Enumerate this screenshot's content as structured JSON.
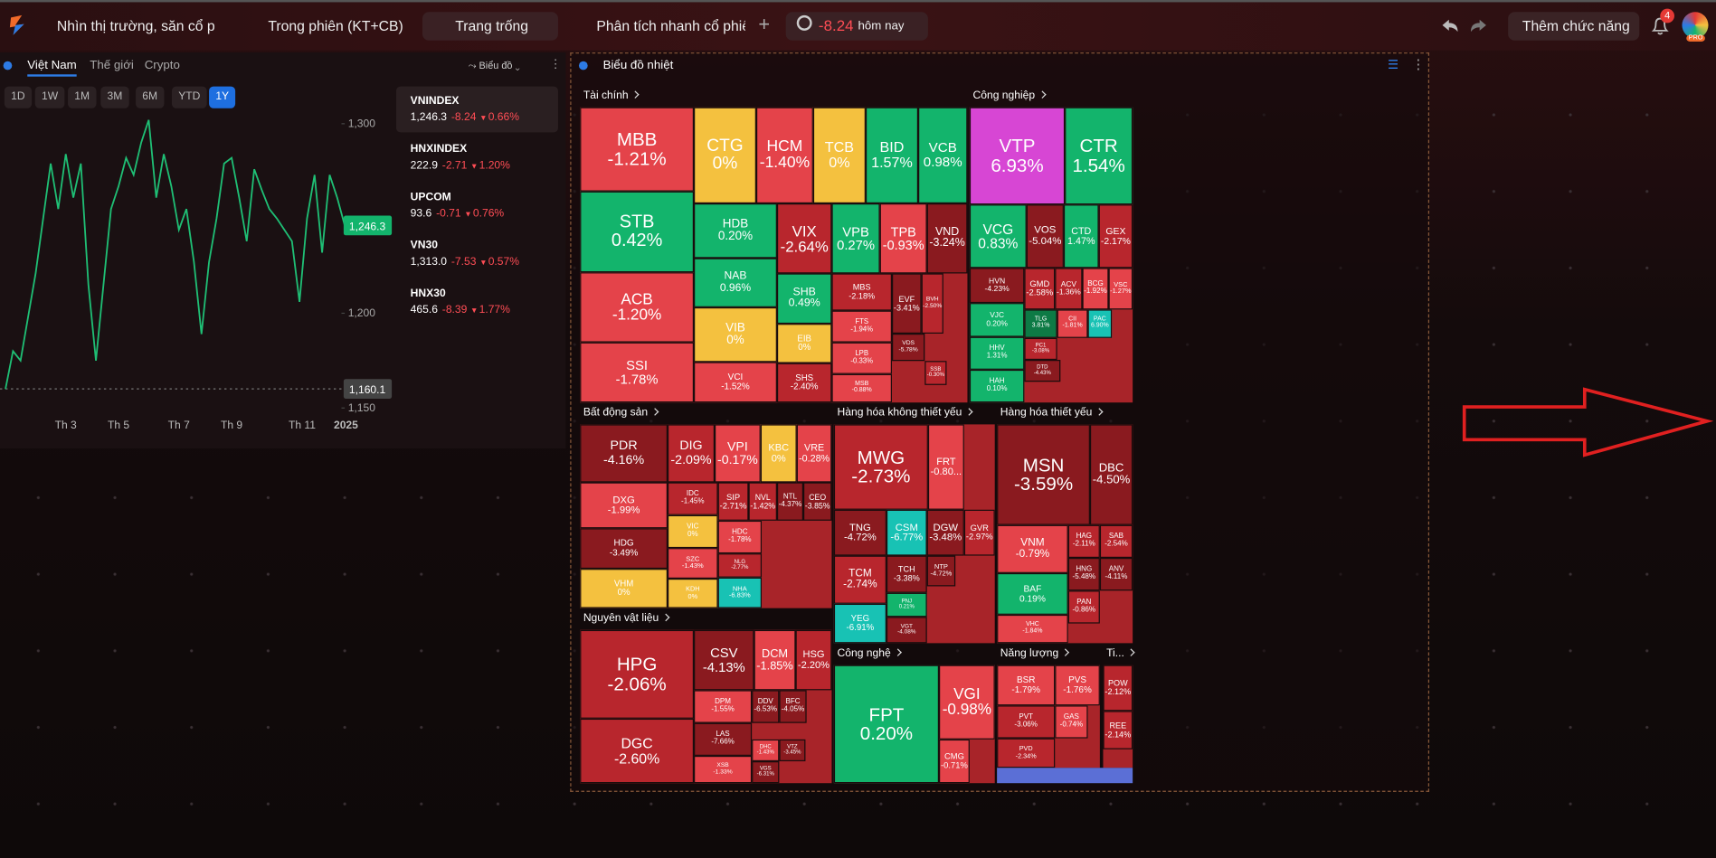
{
  "nav": {
    "tabs": [
      "Nhìn thị trường, săn cổ p",
      "Trong phiên (KT+CB)",
      "Trang trống",
      "Phân tích nhanh cổ phiếu"
    ],
    "index_change": "-8.24",
    "period": "hôm nay",
    "add_feature": "Thêm chức năng",
    "notifications": "4",
    "badge": "PRO"
  },
  "market": {
    "tabs": [
      "Việt Nam",
      "Thế giới",
      "Crypto"
    ],
    "view": "Biểu đồ",
    "ranges": [
      "1D",
      "1W",
      "1M",
      "3M",
      "6M",
      "YTD",
      "1Y"
    ],
    "indices": [
      {
        "name": "VNINDEX",
        "price": "1,246.3",
        "change": "-8.24",
        "pct": "0.66%"
      },
      {
        "name": "HNXINDEX",
        "price": "222.9",
        "change": "-2.71",
        "pct": "1.20%"
      },
      {
        "name": "UPCOM",
        "price": "93.6",
        "change": "-0.71",
        "pct": "0.76%"
      },
      {
        "name": "VN30",
        "price": "1,313.0",
        "change": "-7.53",
        "pct": "0.57%"
      },
      {
        "name": "HNX30",
        "price": "465.6",
        "change": "-8.39",
        "pct": "1.77%"
      }
    ]
  },
  "chart_data": {
    "type": "line",
    "color": "#1fbf75",
    "categories": [
      null,
      null,
      null,
      null,
      null,
      null,
      null,
      null,
      "Th 3",
      null,
      null,
      null,
      null,
      null,
      null,
      "Th 5",
      null,
      null,
      null,
      null,
      null,
      null,
      null,
      "Th 7",
      null,
      null,
      null,
      null,
      null,
      null,
      "Th 9",
      null,
      null,
      null,
      null,
      null,
      null,
      null,
      null,
      "Th 11",
      null,
      null,
      null,
      null,
      null,
      "2025"
    ],
    "values": [
      1160,
      1180,
      1175,
      1198,
      1221,
      1250,
      1279,
      1255,
      1284,
      1261,
      1279,
      1215,
      1175,
      1215,
      1255,
      1267,
      1282,
      1273,
      1290,
      1302,
      1261,
      1284,
      1267,
      1244,
      1255,
      1227,
      1189,
      1227,
      1250,
      1279,
      1282,
      1261,
      1238,
      1276,
      1265,
      1255,
      1250,
      1244,
      1238,
      1206,
      1250,
      1273,
      1232,
      1273,
      1261,
      1246.3
    ],
    "ylim": [
      1150,
      1307
    ],
    "yticks": [
      {
        "value": 1300,
        "label": "1,300"
      },
      {
        "value": 1200,
        "label": "1,200"
      },
      {
        "value": 1150,
        "label": "1,150"
      }
    ],
    "last_label": "1,246.3",
    "reference": {
      "value": 1160.1,
      "label": "1,160.1"
    }
  },
  "heatmap": {
    "title": "Biểu đồ nhiệt",
    "sectors": [
      {
        "name": "Tài chính",
        "cells": [
          {
            "ticker": "MBB",
            "change": "-1.21%",
            "color": "#e4434a"
          },
          {
            "ticker": "CTG",
            "change": "0%",
            "color": "#f4c13f"
          },
          {
            "ticker": "HCM",
            "change": "-1.40%",
            "color": "#e4434a"
          },
          {
            "ticker": "TCB",
            "change": "0%",
            "color": "#f4c13f"
          },
          {
            "ticker": "BID",
            "change": "1.57%",
            "color": "#13b46c"
          },
          {
            "ticker": "VCB",
            "change": "0.98%",
            "color": "#13b46c"
          },
          {
            "ticker": "STB",
            "change": "0.42%",
            "color": "#13b46c"
          },
          {
            "ticker": "HDB",
            "change": "0.20%",
            "color": "#13b46c"
          },
          {
            "ticker": "VIX",
            "change": "-2.64%",
            "color": "#b8262d"
          },
          {
            "ticker": "VPB",
            "change": "0.27%",
            "color": "#13b46c"
          },
          {
            "ticker": "TPB",
            "change": "-0.93%",
            "color": "#e4434a"
          },
          {
            "ticker": "VND",
            "change": "-3.24%",
            "color": "#8a1a1f"
          },
          {
            "ticker": "ACB",
            "change": "-1.20%",
            "color": "#e4434a"
          },
          {
            "ticker": "NAB",
            "change": "0.96%",
            "color": "#13b46c"
          },
          {
            "ticker": "SHB",
            "change": "0.49%",
            "color": "#13b46c"
          },
          {
            "ticker": "MBS",
            "change": "-2.18%",
            "color": "#b8262d"
          },
          {
            "ticker": "EVF",
            "change": "-3.41%",
            "color": "#8a1a1f"
          },
          {
            "ticker": "BVH",
            "change": "-2.50%",
            "color": "#b8262d"
          },
          {
            "ticker": "FTS",
            "change": "-1.94%",
            "color": "#e4434a"
          },
          {
            "ticker": "VIB",
            "change": "0%",
            "color": "#f4c13f"
          },
          {
            "ticker": "EIB",
            "change": "0%",
            "color": "#f4c13f"
          },
          {
            "ticker": "LPB",
            "change": "-0.33%",
            "color": "#e4434a"
          },
          {
            "ticker": "VDS",
            "change": "-5.78%",
            "color": "#8a1a1f"
          },
          {
            "ticker": "SSI",
            "change": "-1.78%",
            "color": "#e4434a"
          },
          {
            "ticker": "VCI",
            "change": "-1.52%",
            "color": "#e4434a"
          },
          {
            "ticker": "SHS",
            "change": "-2.40%",
            "color": "#b8262d"
          },
          {
            "ticker": "MSB",
            "change": "-0.88%",
            "color": "#e4434a"
          },
          {
            "ticker": "SSB",
            "change": "-0.30%",
            "color": "#b8262d"
          }
        ]
      },
      {
        "name": "Công nghiệp",
        "cells": [
          {
            "ticker": "VTP",
            "change": "6.93%",
            "color": "#d746d4"
          },
          {
            "ticker": "CTR",
            "change": "1.54%",
            "color": "#13b46c"
          },
          {
            "ticker": "VCG",
            "change": "0.83%",
            "color": "#13b46c"
          },
          {
            "ticker": "VOS",
            "change": "-5.04%",
            "color": "#8a1a1f"
          },
          {
            "ticker": "CTD",
            "change": "1.47%",
            "color": "#13b46c"
          },
          {
            "ticker": "GEX",
            "change": "-2.17%",
            "color": "#b8262d"
          },
          {
            "ticker": "HVN",
            "change": "-4.23%",
            "color": "#8a1a1f"
          },
          {
            "ticker": "GMD",
            "change": "-2.58%",
            "color": "#b8262d"
          },
          {
            "ticker": "ACV",
            "change": "-1.36%",
            "color": "#b8262d"
          },
          {
            "ticker": "BCG",
            "change": "-1.92%",
            "color": "#e4434a"
          },
          {
            "ticker": "VSC",
            "change": "-1.27%",
            "color": "#e4434a"
          },
          {
            "ticker": "VJC",
            "change": "0.20%",
            "color": "#13b46c"
          },
          {
            "ticker": "TLG",
            "change": "3.81%",
            "color": "#0d7a45"
          },
          {
            "ticker": "CII",
            "change": "-1.81%",
            "color": "#e4434a"
          },
          {
            "ticker": "PAC",
            "change": "6.90%",
            "color": "#18c2b4"
          },
          {
            "ticker": "HHV",
            "change": "1.31%",
            "color": "#13b46c"
          },
          {
            "ticker": "PC1",
            "change": "-3.08%",
            "color": "#b8262d"
          },
          {
            "ticker": "DTD",
            "change": "-4.43%",
            "color": "#8a1a1f"
          },
          {
            "ticker": "HAH",
            "change": "0.10%",
            "color": "#13b46c"
          }
        ]
      },
      {
        "name": "Bất động sản",
        "cells": [
          {
            "ticker": "PDR",
            "change": "-4.16%",
            "color": "#8a1a1f"
          },
          {
            "ticker": "DIG",
            "change": "-2.09%",
            "color": "#b8262d"
          },
          {
            "ticker": "VPI",
            "change": "-0.17%",
            "color": "#e4434a"
          },
          {
            "ticker": "KBC",
            "change": "0%",
            "color": "#f4c13f"
          },
          {
            "ticker": "VRE",
            "change": "-0.28%",
            "color": "#e4434a"
          },
          {
            "ticker": "DXG",
            "change": "-1.99%",
            "color": "#e4434a"
          },
          {
            "ticker": "IDC",
            "change": "-1.45%",
            "color": "#b8262d"
          },
          {
            "ticker": "SIP",
            "change": "-2.71%",
            "color": "#b8262d"
          },
          {
            "ticker": "NVL",
            "change": "-1.42%",
            "color": "#b8262d"
          },
          {
            "ticker": "NTL",
            "change": "-4.37%",
            "color": "#8a1a1f"
          },
          {
            "ticker": "CEO",
            "change": "-3.85%",
            "color": "#8a1a1f"
          },
          {
            "ticker": "HDG",
            "change": "-3.49%",
            "color": "#8a1a1f"
          },
          {
            "ticker": "VIC",
            "change": "0%",
            "color": "#f4c13f"
          },
          {
            "ticker": "HDC",
            "change": "-1.78%",
            "color": "#e4434a"
          },
          {
            "ticker": "SZC",
            "change": "-1.43%",
            "color": "#e4434a"
          },
          {
            "ticker": "NLG",
            "change": "-2.77%",
            "color": "#b8262d"
          },
          {
            "ticker": "VHM",
            "change": "0%",
            "color": "#f4c13f"
          },
          {
            "ticker": "KDH",
            "change": "0%",
            "color": "#f4c13f"
          },
          {
            "ticker": "NHA",
            "change": "-6.83%",
            "color": "#18c2b4"
          }
        ]
      },
      {
        "name": "Hàng hóa không thiết yếu",
        "cells": [
          {
            "ticker": "MWG",
            "change": "-2.73%",
            "color": "#b8262d"
          },
          {
            "ticker": "FRT",
            "change": "-0.80...",
            "color": "#e4434a"
          },
          {
            "ticker": "TNG",
            "change": "-4.72%",
            "color": "#8a1a1f"
          },
          {
            "ticker": "CSM",
            "change": "-6.77%",
            "color": "#18c2b4"
          },
          {
            "ticker": "DGW",
            "change": "-3.48%",
            "color": "#8a1a1f"
          },
          {
            "ticker": "GVR",
            "change": "-2.97%",
            "color": "#b8262d"
          },
          {
            "ticker": "TCM",
            "change": "-2.74%",
            "color": "#b8262d"
          },
          {
            "ticker": "TCH",
            "change": "-3.38%",
            "color": "#8a1a1f"
          },
          {
            "ticker": "NTP",
            "change": "-4.72%",
            "color": "#8a1a1f"
          },
          {
            "ticker": "PNJ",
            "change": "0.21%",
            "color": "#13b46c"
          },
          {
            "ticker": "YEG",
            "change": "-6.91%",
            "color": "#18c2b4"
          },
          {
            "ticker": "VGT",
            "change": "-4.08%",
            "color": "#8a1a1f"
          }
        ]
      },
      {
        "name": "Hàng hóa thiết yếu",
        "cells": [
          {
            "ticker": "MSN",
            "change": "-3.59%",
            "color": "#8a1a1f"
          },
          {
            "ticker": "DBC",
            "change": "-4.50%",
            "color": "#8a1a1f"
          },
          {
            "ticker": "VNM",
            "change": "-0.79%",
            "color": "#e4434a"
          },
          {
            "ticker": "HAG",
            "change": "-2.11%",
            "color": "#b8262d"
          },
          {
            "ticker": "SAB",
            "change": "-2.54%",
            "color": "#b8262d"
          },
          {
            "ticker": "BAF",
            "change": "0.19%",
            "color": "#13b46c"
          },
          {
            "ticker": "HNG",
            "change": "-5.48%",
            "color": "#8a1a1f"
          },
          {
            "ticker": "ANV",
            "change": "-4.11%",
            "color": "#8a1a1f"
          },
          {
            "ticker": "VHC",
            "change": "-1.84%",
            "color": "#e4434a"
          },
          {
            "ticker": "PAN",
            "change": "-0.86%",
            "color": "#b8262d"
          }
        ]
      },
      {
        "name": "Nguyên vật liệu",
        "cells": [
          {
            "ticker": "HPG",
            "change": "-2.06%",
            "color": "#b8262d"
          },
          {
            "ticker": "CSV",
            "change": "-4.13%",
            "color": "#8a1a1f"
          },
          {
            "ticker": "DCM",
            "change": "-1.85%",
            "color": "#e4434a"
          },
          {
            "ticker": "HSG",
            "change": "-2.20%",
            "color": "#b8262d"
          },
          {
            "ticker": "DGC",
            "change": "-2.60%",
            "color": "#b8262d"
          },
          {
            "ticker": "DPM",
            "change": "-1.55%",
            "color": "#e4434a"
          },
          {
            "ticker": "DDV",
            "change": "-6.53%",
            "color": "#8a1a1f"
          },
          {
            "ticker": "BFC",
            "change": "-4.05%",
            "color": "#8a1a1f"
          },
          {
            "ticker": "LAS",
            "change": "-7.66%",
            "color": "#8a1a1f"
          },
          {
            "ticker": "DHC",
            "change": "-1.43%",
            "color": "#e4434a"
          },
          {
            "ticker": "VTZ",
            "change": "-3.45%",
            "color": "#8a1a1f"
          },
          {
            "ticker": "XSB",
            "change": "-1.33%",
            "color": "#e4434a"
          },
          {
            "ticker": "VGS",
            "change": "-6.31%",
            "color": "#8a1a1f"
          }
        ]
      },
      {
        "name": "Công nghệ",
        "cells": [
          {
            "ticker": "FPT",
            "change": "0.20%",
            "color": "#13b46c"
          },
          {
            "ticker": "VGI",
            "change": "-0.98%",
            "color": "#e4434a"
          },
          {
            "ticker": "CMG",
            "change": "-0.71%",
            "color": "#e4434a"
          }
        ]
      },
      {
        "name": "Năng lượng",
        "cells": [
          {
            "ticker": "BSR",
            "change": "-1.79%",
            "color": "#e4434a"
          },
          {
            "ticker": "PVS",
            "change": "-1.76%",
            "color": "#e4434a"
          },
          {
            "ticker": "PVT",
            "change": "-3.06%",
            "color": "#b8262d"
          },
          {
            "ticker": "GAS",
            "change": "-0.74%",
            "color": "#e4434a"
          },
          {
            "ticker": "PVD",
            "change": "-2.34%",
            "color": "#b8262d"
          }
        ]
      },
      {
        "name": "Ti...",
        "cells": [
          {
            "ticker": "POW",
            "change": "-2.12%",
            "color": "#b8262d"
          },
          {
            "ticker": "REE",
            "change": "-2.14%",
            "color": "#b8262d"
          }
        ]
      }
    ]
  }
}
